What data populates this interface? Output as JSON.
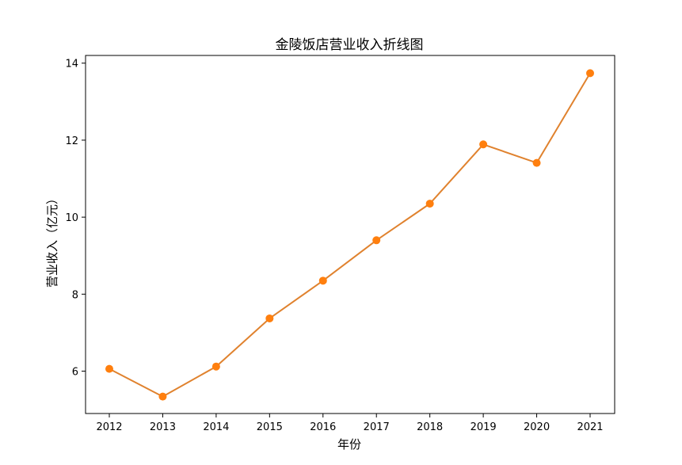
{
  "chart_data": {
    "type": "line",
    "title": "金陵饭店营业收入折线图",
    "xlabel": "年份",
    "ylabel": "营业收入（亿元）",
    "x": [
      "2012",
      "2013",
      "2014",
      "2015",
      "2016",
      "2017",
      "2018",
      "2019",
      "2020",
      "2021"
    ],
    "series": [
      {
        "values": [
          6.06,
          5.34,
          6.12,
          7.37,
          8.35,
          9.4,
          10.35,
          11.89,
          11.41,
          13.74
        ],
        "color": "#ff7f0e",
        "line_color": "#e0822e",
        "marker": "circle"
      }
    ],
    "ylim": [
      4.9,
      14.2
    ],
    "yticks": [
      "6",
      "8",
      "10",
      "12",
      "14"
    ],
    "grid": false,
    "legend": "none"
  }
}
